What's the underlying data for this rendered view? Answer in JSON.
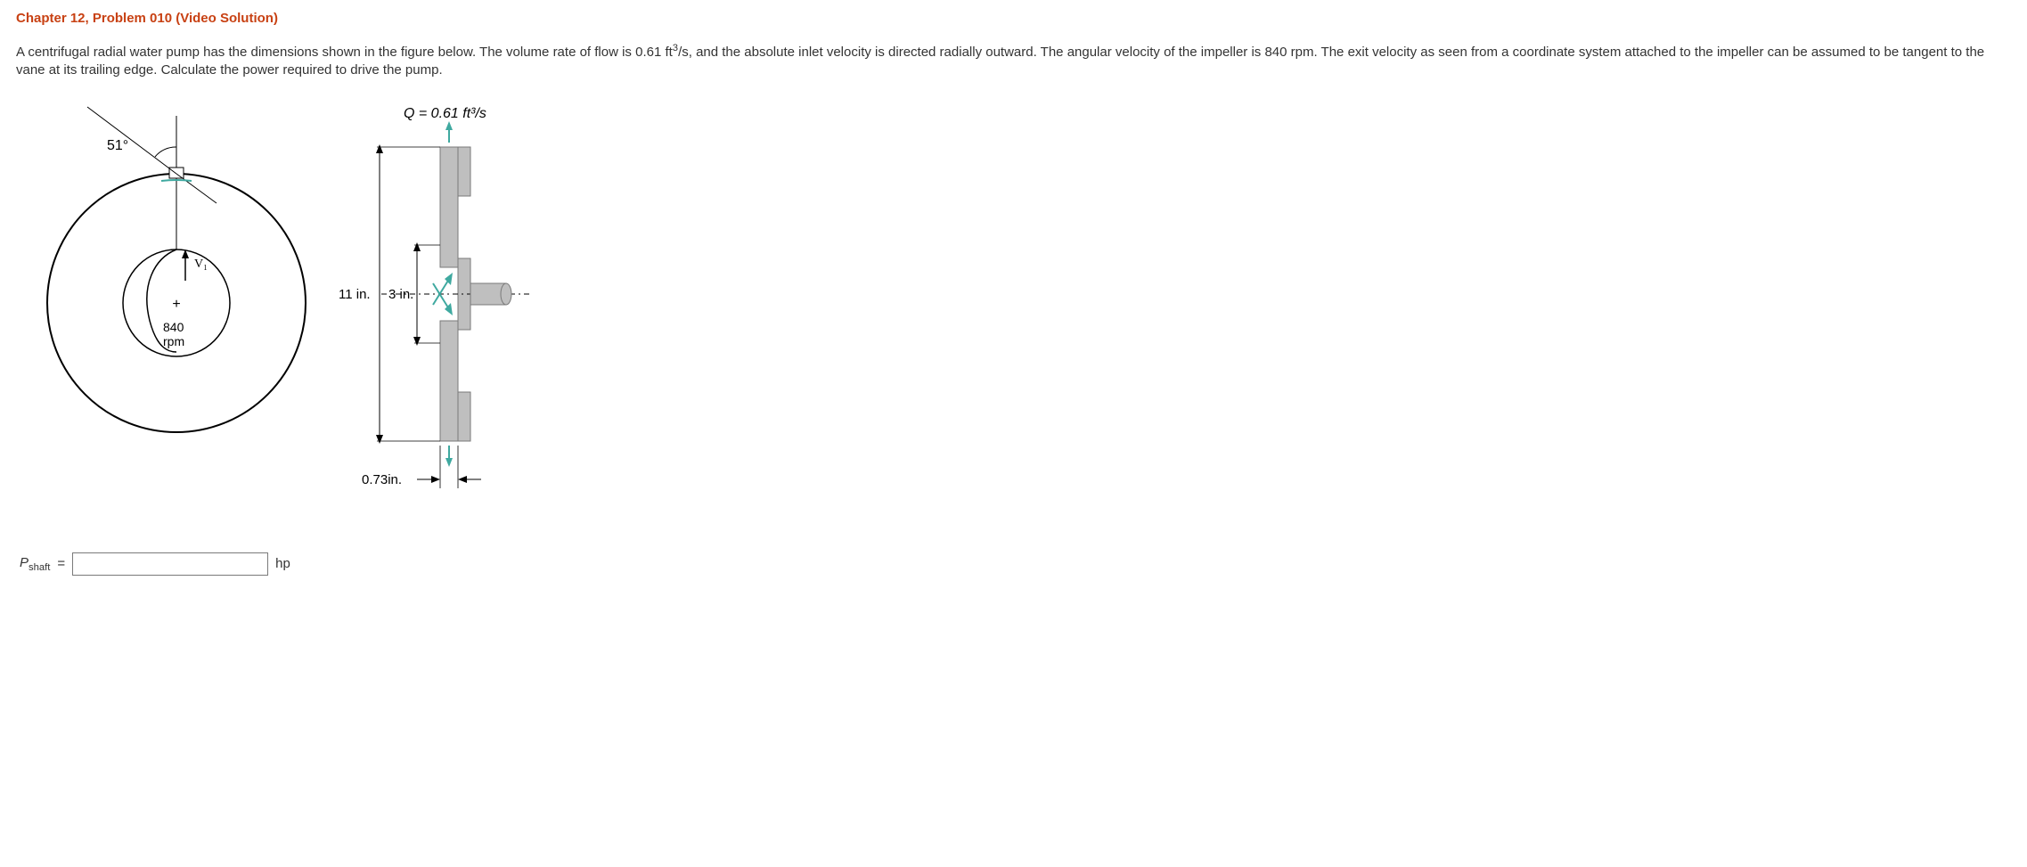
{
  "title": "Chapter 12, Problem 010 (Video Solution)",
  "problem_text_html": "A centrifugal radial water pump has the dimensions shown in the figure below. The volume rate of flow is 0.61 ft<sup>3</sup>/s, and the absolute inlet velocity is directed radially outward. The angular velocity of the impeller is 840 rpm. The exit velocity as seen from a coordinate system attached to the impeller can be assumed to be tangent to the vane at its trailing edge. Calculate the power required to drive the pump.",
  "figure": {
    "left": {
      "angle_label": "51°",
      "v1_label": "V₁",
      "rpm_line1": "840",
      "rpm_line2": "rpm",
      "outer_circle_color": "#000000",
      "inner_circle_color": "#000000",
      "accent_color": "#3fa9a0",
      "plus_symbol": "+"
    },
    "right": {
      "flow_label_html": "Q = 0.61 ft³/s",
      "dim_outer": "11 in.",
      "dim_inner": "3 in.",
      "dim_thickness": "0.73in.",
      "body_fill": "#bfbfbf",
      "body_stroke": "#7a7a7a",
      "accent_color": "#3fa9a0",
      "shaft_fill": "#bfbfbf"
    }
  },
  "answer": {
    "variable": "P",
    "subscript": "shaft",
    "equals": "=",
    "value": "",
    "unit": "hp"
  },
  "colors": {
    "title": "#c84113",
    "text": "#333333",
    "input_border": "#7a7a7a"
  }
}
